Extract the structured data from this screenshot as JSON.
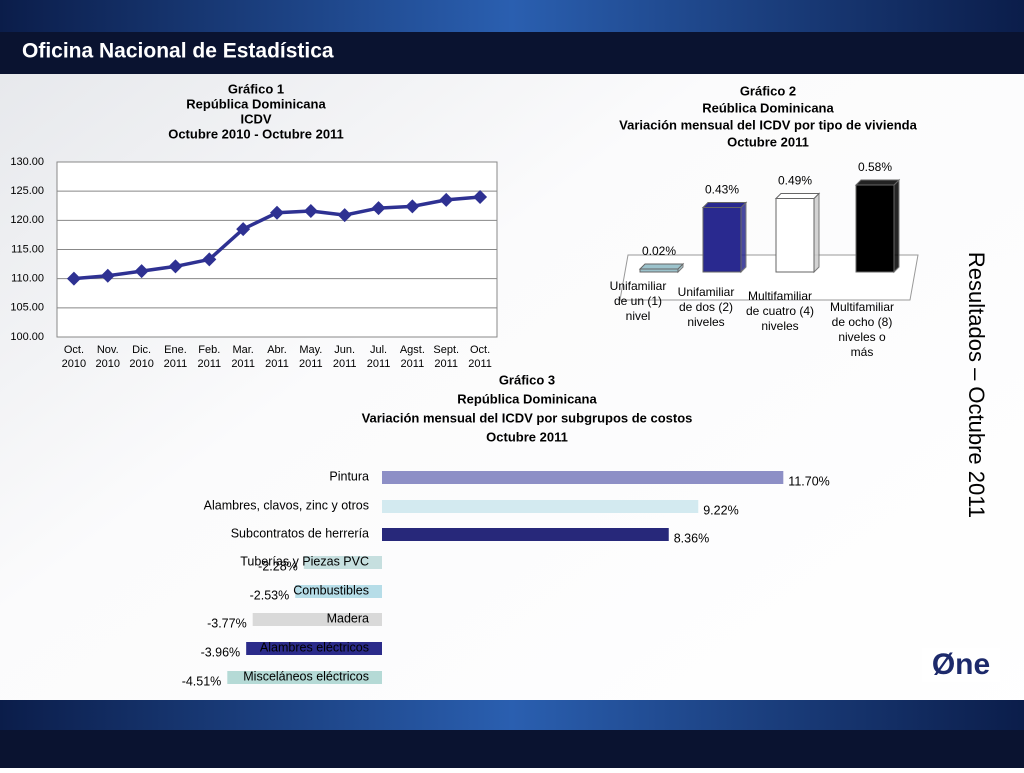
{
  "header": {
    "title": "Oficina Nacional de Estadística"
  },
  "side_title": "Resultados – Octubre 2011",
  "logo": "Øne",
  "chart_data": [
    {
      "type": "line",
      "title": [
        "Gráfico 1",
        "República Dominicana",
        "ICDV",
        "Octubre 2010 - Octubre 2011"
      ],
      "categories": [
        [
          "Oct.",
          "2010"
        ],
        [
          "Nov.",
          "2010"
        ],
        [
          "Dic.",
          "2010"
        ],
        [
          "Ene.",
          "2011"
        ],
        [
          "Feb.",
          "2011"
        ],
        [
          "Mar.",
          "2011"
        ],
        [
          "Abr.",
          "2011"
        ],
        [
          "May.",
          "2011"
        ],
        [
          "Jun.",
          "2011"
        ],
        [
          "Jul.",
          "2011"
        ],
        [
          "Agst.",
          "2011"
        ],
        [
          "Sept.",
          "2011"
        ],
        [
          "Oct.",
          "2011"
        ]
      ],
      "values": [
        110.0,
        110.5,
        111.3,
        112.1,
        113.3,
        118.5,
        121.3,
        121.6,
        120.9,
        122.1,
        122.4,
        123.5,
        124.0
      ],
      "color": "#2e3192",
      "ylim": [
        100,
        130
      ],
      "yticks": [
        {
          "value": 100,
          "label": "100.00"
        },
        {
          "value": 105,
          "label": "105.00"
        },
        {
          "value": 110,
          "label": "110.00"
        },
        {
          "value": 115,
          "label": "115.00"
        },
        {
          "value": 120,
          "label": "120.00"
        },
        {
          "value": 125,
          "label": "125.00"
        },
        {
          "value": 130,
          "label": "130.00"
        }
      ],
      "grid": true
    },
    {
      "type": "bar3d",
      "title": [
        "Gráfico 2",
        "Reública Dominicana",
        "Variación mensual del ICDV por tipo de vivienda",
        "Octubre 2011"
      ],
      "categories": [
        [
          "Unifamiliar",
          "de un (1)",
          "nivel"
        ],
        [
          "Unifamiliar",
          "de dos (2)",
          "niveles"
        ],
        [
          "Multifamiliar",
          "de cuatro (4)",
          "niveles"
        ],
        [
          "Multifamiliar",
          "de ocho (8)",
          "niveles o",
          "más"
        ]
      ],
      "values": [
        0.02,
        0.43,
        0.49,
        0.58
      ],
      "value_labels": [
        "0.02%",
        "0.43%",
        "0.49%",
        "0.58%"
      ],
      "colors": [
        "#9cc3cc",
        "#29298f",
        "#ffffff",
        "#000000"
      ]
    },
    {
      "type": "barh",
      "title": [
        "Gráfico 3",
        "República Dominicana",
        "Variación mensual del ICDV por subgrupos de costos",
        "Octubre 2011"
      ],
      "categories": [
        "Pintura",
        "Alambres, clavos, zinc y otros",
        "Subcontratos de herrería",
        "Tuberías y Piezas PVC",
        "Combustibles",
        "Madera",
        "Alambres eléctricos",
        "Misceláneos eléctricos"
      ],
      "values": [
        11.7,
        9.22,
        8.36,
        -2.28,
        -2.53,
        -3.77,
        -3.96,
        -4.51
      ],
      "value_labels": [
        "11.70%",
        "9.22%",
        "8.36%",
        "-2.28%",
        "-2.53%",
        "-3.77%",
        "-3.96%",
        "-4.51%"
      ],
      "colors": [
        "#8d8fc6",
        "#d3eaf0",
        "#27287a",
        "#c6dfdf",
        "#b6dde8",
        "#d9d9d9",
        "#2b2b8a",
        "#b5dad6"
      ]
    }
  ]
}
